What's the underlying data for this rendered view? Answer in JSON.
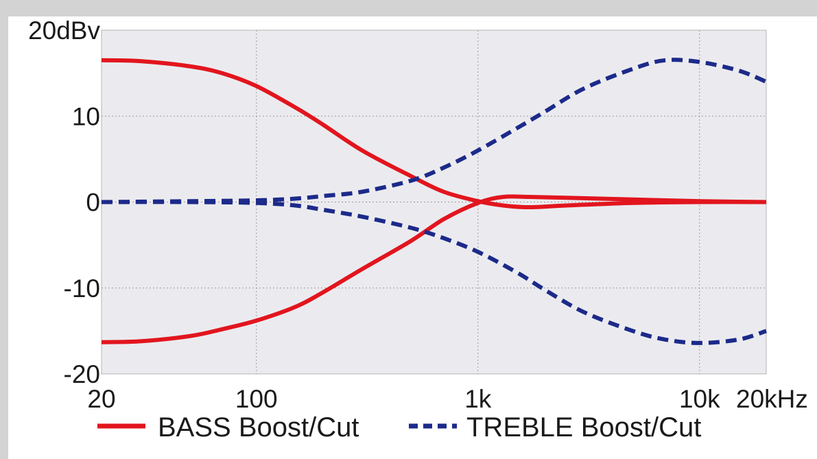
{
  "chart_data": {
    "type": "line",
    "x_scale": "log",
    "grid": true,
    "legend_position": "bottom",
    "xlim": [
      20,
      20000
    ],
    "ylim": [
      -20,
      20
    ],
    "x_ticks": [
      {
        "value": 20,
        "label": "20"
      },
      {
        "value": 100,
        "label": "100"
      },
      {
        "value": 1000,
        "label": "1k"
      },
      {
        "value": 10000,
        "label": "10k"
      },
      {
        "value": 20000,
        "label": "20kHz"
      }
    ],
    "y_ticks": [
      {
        "value": 20,
        "label": "20dBv"
      },
      {
        "value": 10,
        "label": "10"
      },
      {
        "value": 0,
        "label": "0"
      },
      {
        "value": -10,
        "label": "-10"
      },
      {
        "value": -20,
        "label": "-20"
      }
    ],
    "colors": {
      "plot_background": "#ebebef",
      "grid": "#9a9a9a",
      "bass": "#e2151e",
      "treble": "#1c2a8a"
    },
    "series": [
      {
        "name": "BASS Boost/Cut",
        "style": "solid",
        "color": "#e2151e",
        "points": [
          [
            20,
            16.5
          ],
          [
            30,
            16.4
          ],
          [
            50,
            15.8
          ],
          [
            70,
            15.0
          ],
          [
            100,
            13.5
          ],
          [
            150,
            11.0
          ],
          [
            200,
            9.0
          ],
          [
            300,
            6.0
          ],
          [
            500,
            3.0
          ],
          [
            700,
            1.2
          ],
          [
            1000,
            0.1
          ],
          [
            1300,
            -0.4
          ],
          [
            1700,
            -0.6
          ],
          [
            2500,
            -0.4
          ],
          [
            5000,
            -0.1
          ],
          [
            10000,
            0.0
          ],
          [
            20000,
            0.0
          ]
        ]
      },
      {
        "name": "BASS Boost/Cut",
        "style": "solid",
        "color": "#e2151e",
        "points": [
          [
            20,
            -16.3
          ],
          [
            30,
            -16.2
          ],
          [
            50,
            -15.6
          ],
          [
            70,
            -14.8
          ],
          [
            100,
            -13.8
          ],
          [
            150,
            -12.2
          ],
          [
            200,
            -10.5
          ],
          [
            300,
            -7.8
          ],
          [
            500,
            -4.5
          ],
          [
            700,
            -2.0
          ],
          [
            1000,
            -0.1
          ],
          [
            1300,
            0.6
          ],
          [
            1700,
            0.6
          ],
          [
            2500,
            0.5
          ],
          [
            5000,
            0.3
          ],
          [
            10000,
            0.1
          ],
          [
            20000,
            0.0
          ]
        ]
      },
      {
        "name": "TREBLE Boost/Cut",
        "style": "dashed",
        "color": "#1c2a8a",
        "points": [
          [
            20,
            0.0
          ],
          [
            50,
            0.1
          ],
          [
            100,
            0.2
          ],
          [
            150,
            0.4
          ],
          [
            200,
            0.7
          ],
          [
            300,
            1.2
          ],
          [
            500,
            2.5
          ],
          [
            700,
            4.0
          ],
          [
            1000,
            6.0
          ],
          [
            1500,
            8.6
          ],
          [
            2000,
            10.5
          ],
          [
            3000,
            13.2
          ],
          [
            5000,
            15.5
          ],
          [
            7000,
            16.5
          ],
          [
            10000,
            16.3
          ],
          [
            15000,
            15.3
          ],
          [
            20000,
            14.0
          ]
        ]
      },
      {
        "name": "TREBLE Boost/Cut",
        "style": "dashed",
        "color": "#1c2a8a",
        "points": [
          [
            20,
            0.0
          ],
          [
            50,
            0.0
          ],
          [
            100,
            -0.1
          ],
          [
            150,
            -0.4
          ],
          [
            200,
            -0.9
          ],
          [
            300,
            -1.7
          ],
          [
            500,
            -3.0
          ],
          [
            700,
            -4.2
          ],
          [
            1000,
            -5.8
          ],
          [
            1500,
            -8.2
          ],
          [
            2000,
            -10.2
          ],
          [
            3000,
            -12.8
          ],
          [
            5000,
            -15.0
          ],
          [
            7000,
            -16.0
          ],
          [
            10000,
            -16.4
          ],
          [
            15000,
            -16.0
          ],
          [
            20000,
            -15.0
          ]
        ]
      }
    ],
    "legend": [
      {
        "label": "BASS Boost/Cut",
        "style": "solid",
        "color": "#e2151e"
      },
      {
        "label": "TREBLE Boost/Cut",
        "style": "dashed",
        "color": "#1c2a8a"
      }
    ]
  }
}
